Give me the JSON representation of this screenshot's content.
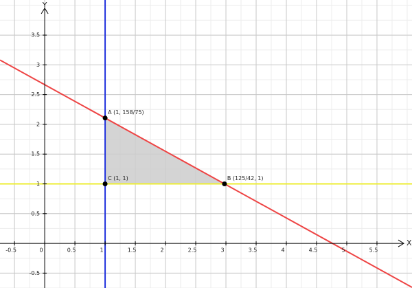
{
  "chart_data": {
    "type": "line",
    "xlabel": "X",
    "ylabel": "Y",
    "xlim": [
      -0.74,
      6.08
    ],
    "ylim": [
      -0.75,
      4.09
    ],
    "xticks": [
      -0.5,
      0,
      0.5,
      1,
      1.5,
      2,
      2.5,
      3,
      3.5,
      4,
      4.5,
      5,
      5.5
    ],
    "yticks": [
      -0.5,
      0.5,
      1,
      1.5,
      2,
      2.5,
      3,
      3.5
    ],
    "grid": true,
    "minor_grid_step": 0.25,
    "series": [
      {
        "color": "#ee4444",
        "x": [
          -0.74,
          6.08
        ],
        "values": [
          3.081,
          -0.738
        ]
      },
      {
        "color": "#2233dd",
        "x": [
          1,
          1
        ],
        "values": [
          -0.75,
          4.09
        ]
      },
      {
        "color": "#eeee33",
        "x": [
          -0.74,
          6.08
        ],
        "values": [
          1,
          1
        ]
      }
    ],
    "region": {
      "color": "#cccccc",
      "x": [
        1,
        2.976,
        1
      ],
      "values": [
        2.107,
        1,
        1
      ]
    },
    "points": [
      {
        "label": "A (1, 158/75)",
        "x": 1,
        "y": 2.107
      },
      {
        "label": "B (125/42, 1)",
        "x": 2.976,
        "y": 1
      },
      {
        "label": "C (1, 1)",
        "x": 1,
        "y": 1
      }
    ]
  }
}
